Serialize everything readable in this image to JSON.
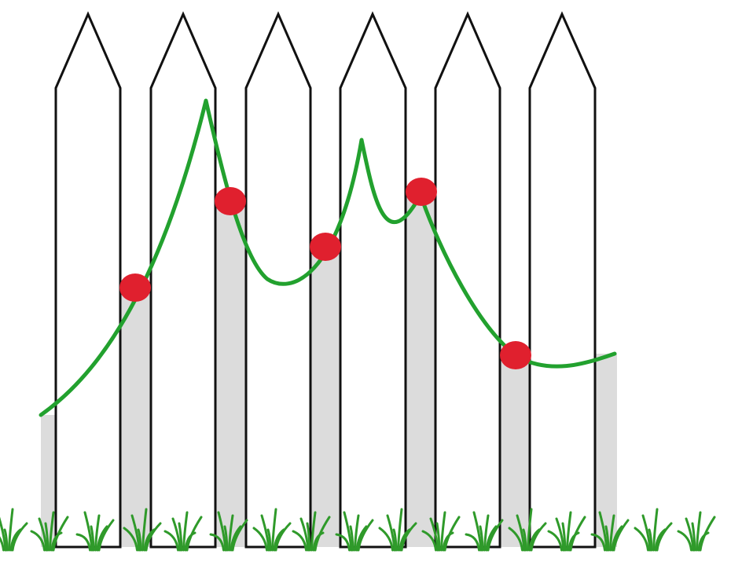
{
  "diagram": {
    "picket_count": 6,
    "marked_points": 5,
    "colors": {
      "curve": "#22a12e",
      "marker": "#e0202e",
      "gap_shade": "#dcdcdc",
      "picket_fill": "#ffffff",
      "picket_outline": "#111111",
      "grass": "#2f9a2a"
    }
  }
}
